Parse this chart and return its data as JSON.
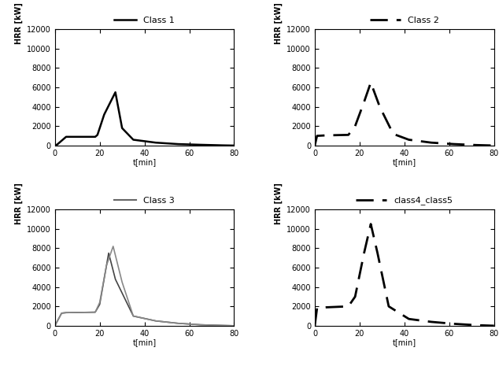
{
  "ylabel": "HRR [kW]",
  "xlabel": "t[min]",
  "xlim": [
    0,
    80
  ],
  "xticks": [
    0,
    20,
    40,
    60,
    80
  ],
  "class1": {
    "label": "Class 1",
    "linestyle": "solid",
    "color": "black",
    "linewidth": 1.8,
    "t": [
      0,
      1,
      5,
      18,
      19,
      22,
      27,
      30,
      35,
      45,
      55,
      65,
      75,
      80
    ],
    "hrr": [
      0,
      100,
      900,
      900,
      1100,
      3200,
      5500,
      1800,
      600,
      300,
      150,
      80,
      20,
      0
    ]
  },
  "class2": {
    "label": "Class 2",
    "color": "black",
    "linewidth": 2.0,
    "dashes": [
      8,
      4
    ],
    "t": [
      0,
      1,
      5,
      15,
      18,
      22,
      25,
      29,
      35,
      42,
      52,
      62,
      72,
      80
    ],
    "hrr": [
      0,
      1000,
      1050,
      1100,
      2000,
      4500,
      6500,
      4000,
      1200,
      600,
      300,
      150,
      50,
      0
    ]
  },
  "class3_line1": {
    "linestyle": "solid",
    "color": "#444444",
    "linewidth": 1.2,
    "t": [
      0,
      3,
      5,
      18,
      20,
      24,
      27,
      35,
      45,
      55,
      65,
      75,
      80
    ],
    "hrr": [
      0,
      1300,
      1350,
      1400,
      2200,
      7500,
      4800,
      1000,
      500,
      250,
      100,
      30,
      0
    ]
  },
  "class3_line2": {
    "label": "Class 3",
    "linestyle": "solid",
    "color": "#888888",
    "linewidth": 1.2,
    "t": [
      0,
      3,
      5,
      18,
      20,
      23,
      26,
      30,
      35,
      45,
      55,
      65,
      75,
      80
    ],
    "hrr": [
      0,
      1300,
      1350,
      1400,
      2400,
      6200,
      8200,
      4500,
      1000,
      500,
      250,
      100,
      30,
      0
    ]
  },
  "class45": {
    "label": "class4_class5",
    "color": "black",
    "linewidth": 2.0,
    "dashes": [
      8,
      4
    ],
    "t": [
      0,
      1,
      5,
      15,
      18,
      22,
      25,
      28,
      33,
      42,
      52,
      62,
      72,
      80
    ],
    "hrr": [
      0,
      1800,
      1900,
      2000,
      3000,
      7500,
      10500,
      7500,
      2000,
      700,
      400,
      200,
      60,
      0
    ]
  },
  "ylim1": [
    0,
    12000
  ],
  "yticks1": [
    0,
    2000,
    4000,
    6000,
    8000,
    10000,
    12000
  ],
  "ylim2": [
    0,
    12000
  ],
  "yticks2": [
    0,
    2000,
    4000,
    6000,
    8000,
    10000,
    12000
  ],
  "ylim3": [
    0,
    12000
  ],
  "yticks3": [
    0,
    2000,
    4000,
    6000,
    8000,
    10000,
    12000
  ],
  "ylim4": [
    0,
    12000
  ],
  "yticks4": [
    0,
    2000,
    4000,
    6000,
    8000,
    10000,
    12000
  ],
  "label_fontsize": 7,
  "tick_fontsize": 7,
  "legend_fontsize": 8,
  "bg_color": "#ffffff"
}
